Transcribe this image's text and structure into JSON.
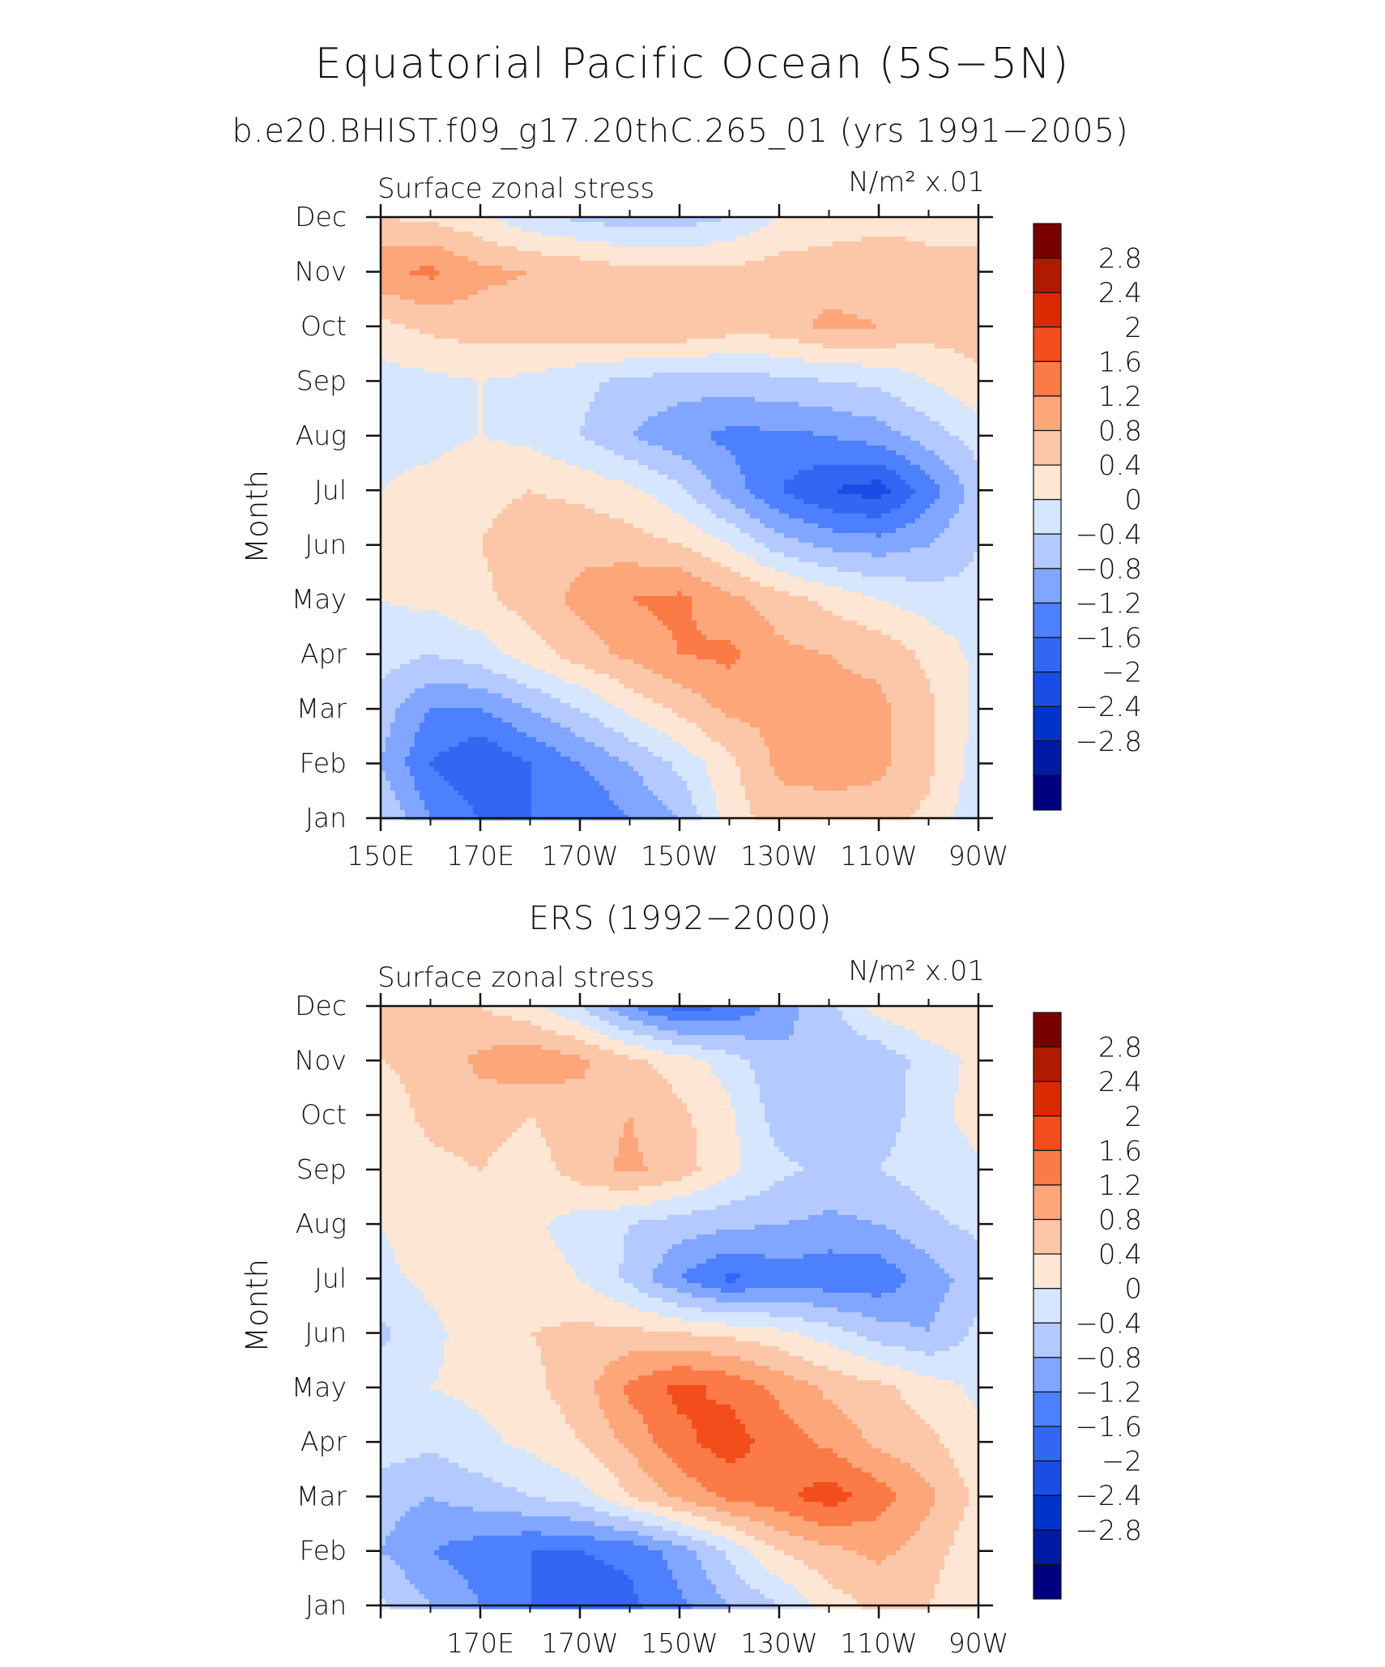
{
  "title": "Equatorial Pacific Ocean (5S−5N)",
  "colors": {
    "levels": [
      "#000080",
      "#001aa6",
      "#0033cc",
      "#1a4de6",
      "#3366f2",
      "#4d80ff",
      "#80a6ff",
      "#b3c9ff",
      "#d6e6ff",
      "#fde6d3",
      "#fcc7a8",
      "#fca67a",
      "#fc7a45",
      "#f24d1a",
      "#d92900",
      "#b01a00",
      "#7a0000"
    ]
  },
  "colorbar": {
    "labels": [
      "2.8",
      "2.4",
      "2",
      "1.6",
      "1.2",
      "0.8",
      "0.4",
      "0",
      "−0.4",
      "−0.8",
      "−1.2",
      "−1.6",
      "−2",
      "−2.4",
      "−2.8"
    ]
  },
  "panels": [
    {
      "subtitle": "b.e20.BHIST.f09_g17.20thC.265_01 (yrs 1991−2005)",
      "left_label": "Surface zonal stress",
      "units_label": "N/m² x.01",
      "ylabel": "Month",
      "xticks": [
        "150E",
        "170E",
        "170W",
        "150W",
        "130W",
        "110W",
        "90W"
      ],
      "yticks": [
        "Jan",
        "Feb",
        "Mar",
        "Apr",
        "May",
        "Jun",
        "Jul",
        "Aug",
        "Sep",
        "Oct",
        "Nov",
        "Dec"
      ]
    },
    {
      "subtitle": "ERS (1992−2000)",
      "left_label": "Surface zonal stress",
      "units_label": "N/m² x.01",
      "ylabel": "Month",
      "xticks": [
        "",
        "170E",
        "170W",
        "150W",
        "130W",
        "110W",
        "90W"
      ],
      "yticks": [
        "Jan",
        "Feb",
        "Mar",
        "Apr",
        "May",
        "Jun",
        "Jul",
        "Aug",
        "Sep",
        "Oct",
        "Nov",
        "Dec"
      ]
    }
  ],
  "chart_data": [
    {
      "type": "heatmap",
      "title": "b.e20.BHIST.f09_g17.20thC.265_01 (yrs 1991−2005)",
      "xlabel": "",
      "ylabel": "Month",
      "x": [
        "150E",
        "160E",
        "170E",
        "180",
        "170W",
        "160W",
        "150W",
        "140W",
        "130W",
        "120W",
        "110W",
        "100W",
        "90W"
      ],
      "y": [
        "Jan",
        "Feb",
        "Mar",
        "Apr",
        "May",
        "Jun",
        "Jul",
        "Aug",
        "Sep",
        "Oct",
        "Nov",
        "Dec"
      ],
      "levels": [
        -2.8,
        -2.4,
        -2.0,
        -1.6,
        -1.2,
        -0.8,
        -0.4,
        0,
        0.4,
        0.8,
        1.2,
        1.6,
        2.0,
        2.4,
        2.8
      ],
      "z": [
        [
          -0.4,
          -1.2,
          -1.6,
          -1.6,
          -1.6,
          -1.2,
          -0.8,
          0.2,
          0.6,
          0.6,
          0.6,
          0.3,
          -0.3
        ],
        [
          -0.8,
          -1.6,
          -2.0,
          -1.6,
          -1.2,
          -0.8,
          -0.3,
          0.3,
          0.9,
          1.0,
          0.9,
          0.5,
          -0.2
        ],
        [
          -0.6,
          -1.2,
          -1.2,
          -0.8,
          -0.4,
          0.1,
          0.5,
          0.9,
          0.9,
          0.9,
          0.9,
          0.5,
          -0.1
        ],
        [
          -0.2,
          -0.4,
          -0.2,
          0.2,
          0.6,
          0.9,
          1.2,
          1.3,
          0.9,
          0.8,
          0.7,
          0.3,
          -0.1
        ],
        [
          0.0,
          0.1,
          0.3,
          0.6,
          0.9,
          1.2,
          1.3,
          0.9,
          0.6,
          0.3,
          0.0,
          -0.2,
          -0.3
        ],
        [
          0.0,
          0.1,
          0.4,
          0.6,
          0.7,
          0.6,
          0.4,
          0.0,
          -0.6,
          -0.9,
          -1.0,
          -0.8,
          -0.4
        ],
        [
          0.0,
          0.1,
          0.3,
          0.4,
          0.3,
          0.1,
          -0.3,
          -1.0,
          -1.6,
          -2.0,
          -2.2,
          -1.4,
          -0.6
        ],
        [
          -0.1,
          -0.1,
          0.0,
          -0.1,
          -0.4,
          -0.8,
          -1.1,
          -1.3,
          -1.3,
          -1.2,
          -1.0,
          -0.6,
          -0.2
        ],
        [
          -0.2,
          -0.1,
          0.0,
          -0.1,
          -0.3,
          -0.5,
          -0.6,
          -0.6,
          -0.5,
          -0.4,
          -0.3,
          0.0,
          0.3
        ],
        [
          0.3,
          0.5,
          0.6,
          0.6,
          0.7,
          0.8,
          0.8,
          0.6,
          0.6,
          0.9,
          0.8,
          0.6,
          0.6
        ],
        [
          1.1,
          1.3,
          0.9,
          0.8,
          0.7,
          0.5,
          0.5,
          0.5,
          0.6,
          0.6,
          0.6,
          0.5,
          0.5
        ],
        [
          0.4,
          0.3,
          0.1,
          -0.3,
          -0.5,
          -0.6,
          -0.6,
          -0.4,
          0.0,
          0.2,
          0.3,
          0.3,
          0.3
        ]
      ]
    },
    {
      "type": "heatmap",
      "title": "ERS (1992−2000)",
      "xlabel": "",
      "ylabel": "Month",
      "x": [
        "150E",
        "160E",
        "170E",
        "180",
        "170W",
        "160W",
        "150W",
        "140W",
        "130W",
        "120W",
        "110W",
        "100W",
        "90W"
      ],
      "y": [
        "Jan",
        "Feb",
        "Mar",
        "Apr",
        "May",
        "Jun",
        "Jul",
        "Aug",
        "Sep",
        "Oct",
        "Nov",
        "Dec"
      ],
      "levels": [
        -2.8,
        -2.4,
        -2.0,
        -1.6,
        -1.2,
        -0.8,
        -0.4,
        0,
        0.4,
        0.8,
        1.2,
        1.6,
        2.0,
        2.4,
        2.8
      ],
      "z": [
        [
          -0.3,
          -0.8,
          -1.2,
          -1.6,
          -1.9,
          -1.7,
          -1.3,
          -0.8,
          -0.4,
          0.2,
          0.5,
          0.4,
          0.0
        ],
        [
          -0.8,
          -1.2,
          -1.4,
          -1.6,
          -1.6,
          -1.5,
          -1.0,
          -0.3,
          0.4,
          0.7,
          0.9,
          0.6,
          0.1
        ],
        [
          -0.6,
          -0.8,
          -0.6,
          -0.4,
          -0.2,
          0.4,
          0.9,
          1.3,
          1.5,
          1.8,
          1.4,
          0.9,
          0.3
        ],
        [
          -0.2,
          -0.3,
          -0.1,
          0.1,
          0.4,
          0.9,
          1.5,
          1.8,
          1.4,
          1.1,
          0.7,
          0.5,
          0.1
        ],
        [
          -0.1,
          0.0,
          0.1,
          0.3,
          0.6,
          1.3,
          1.7,
          1.5,
          1.1,
          0.7,
          0.5,
          0.2,
          -0.1
        ],
        [
          -0.5,
          -0.1,
          0.2,
          0.4,
          0.5,
          0.5,
          0.4,
          0.3,
          0.1,
          -0.2,
          -0.6,
          -0.8,
          -0.3
        ],
        [
          -0.1,
          0.1,
          0.3,
          0.2,
          0.0,
          -0.5,
          -1.2,
          -1.7,
          -1.4,
          -1.5,
          -1.5,
          -1.0,
          -0.6
        ],
        [
          0.0,
          0.2,
          0.3,
          0.1,
          -0.2,
          -0.4,
          -0.6,
          -0.7,
          -0.8,
          -0.9,
          -0.8,
          -0.5,
          -0.3
        ],
        [
          0.1,
          0.3,
          0.4,
          0.2,
          0.6,
          0.9,
          0.6,
          0.1,
          -0.3,
          -0.5,
          -0.4,
          -0.2,
          -0.1
        ],
        [
          0.2,
          0.5,
          0.6,
          0.4,
          0.6,
          0.8,
          0.5,
          0.1,
          -0.6,
          -0.8,
          -0.6,
          -0.2,
          0.2
        ],
        [
          0.4,
          0.5,
          0.9,
          1.1,
          0.9,
          0.5,
          0.2,
          -0.2,
          -0.7,
          -0.8,
          -0.7,
          -0.2,
          0.1
        ],
        [
          0.6,
          0.8,
          0.4,
          0.1,
          -0.4,
          -1.2,
          -1.8,
          -1.6,
          -1.0,
          -0.5,
          0.2,
          0.4,
          0.3
        ]
      ]
    }
  ]
}
